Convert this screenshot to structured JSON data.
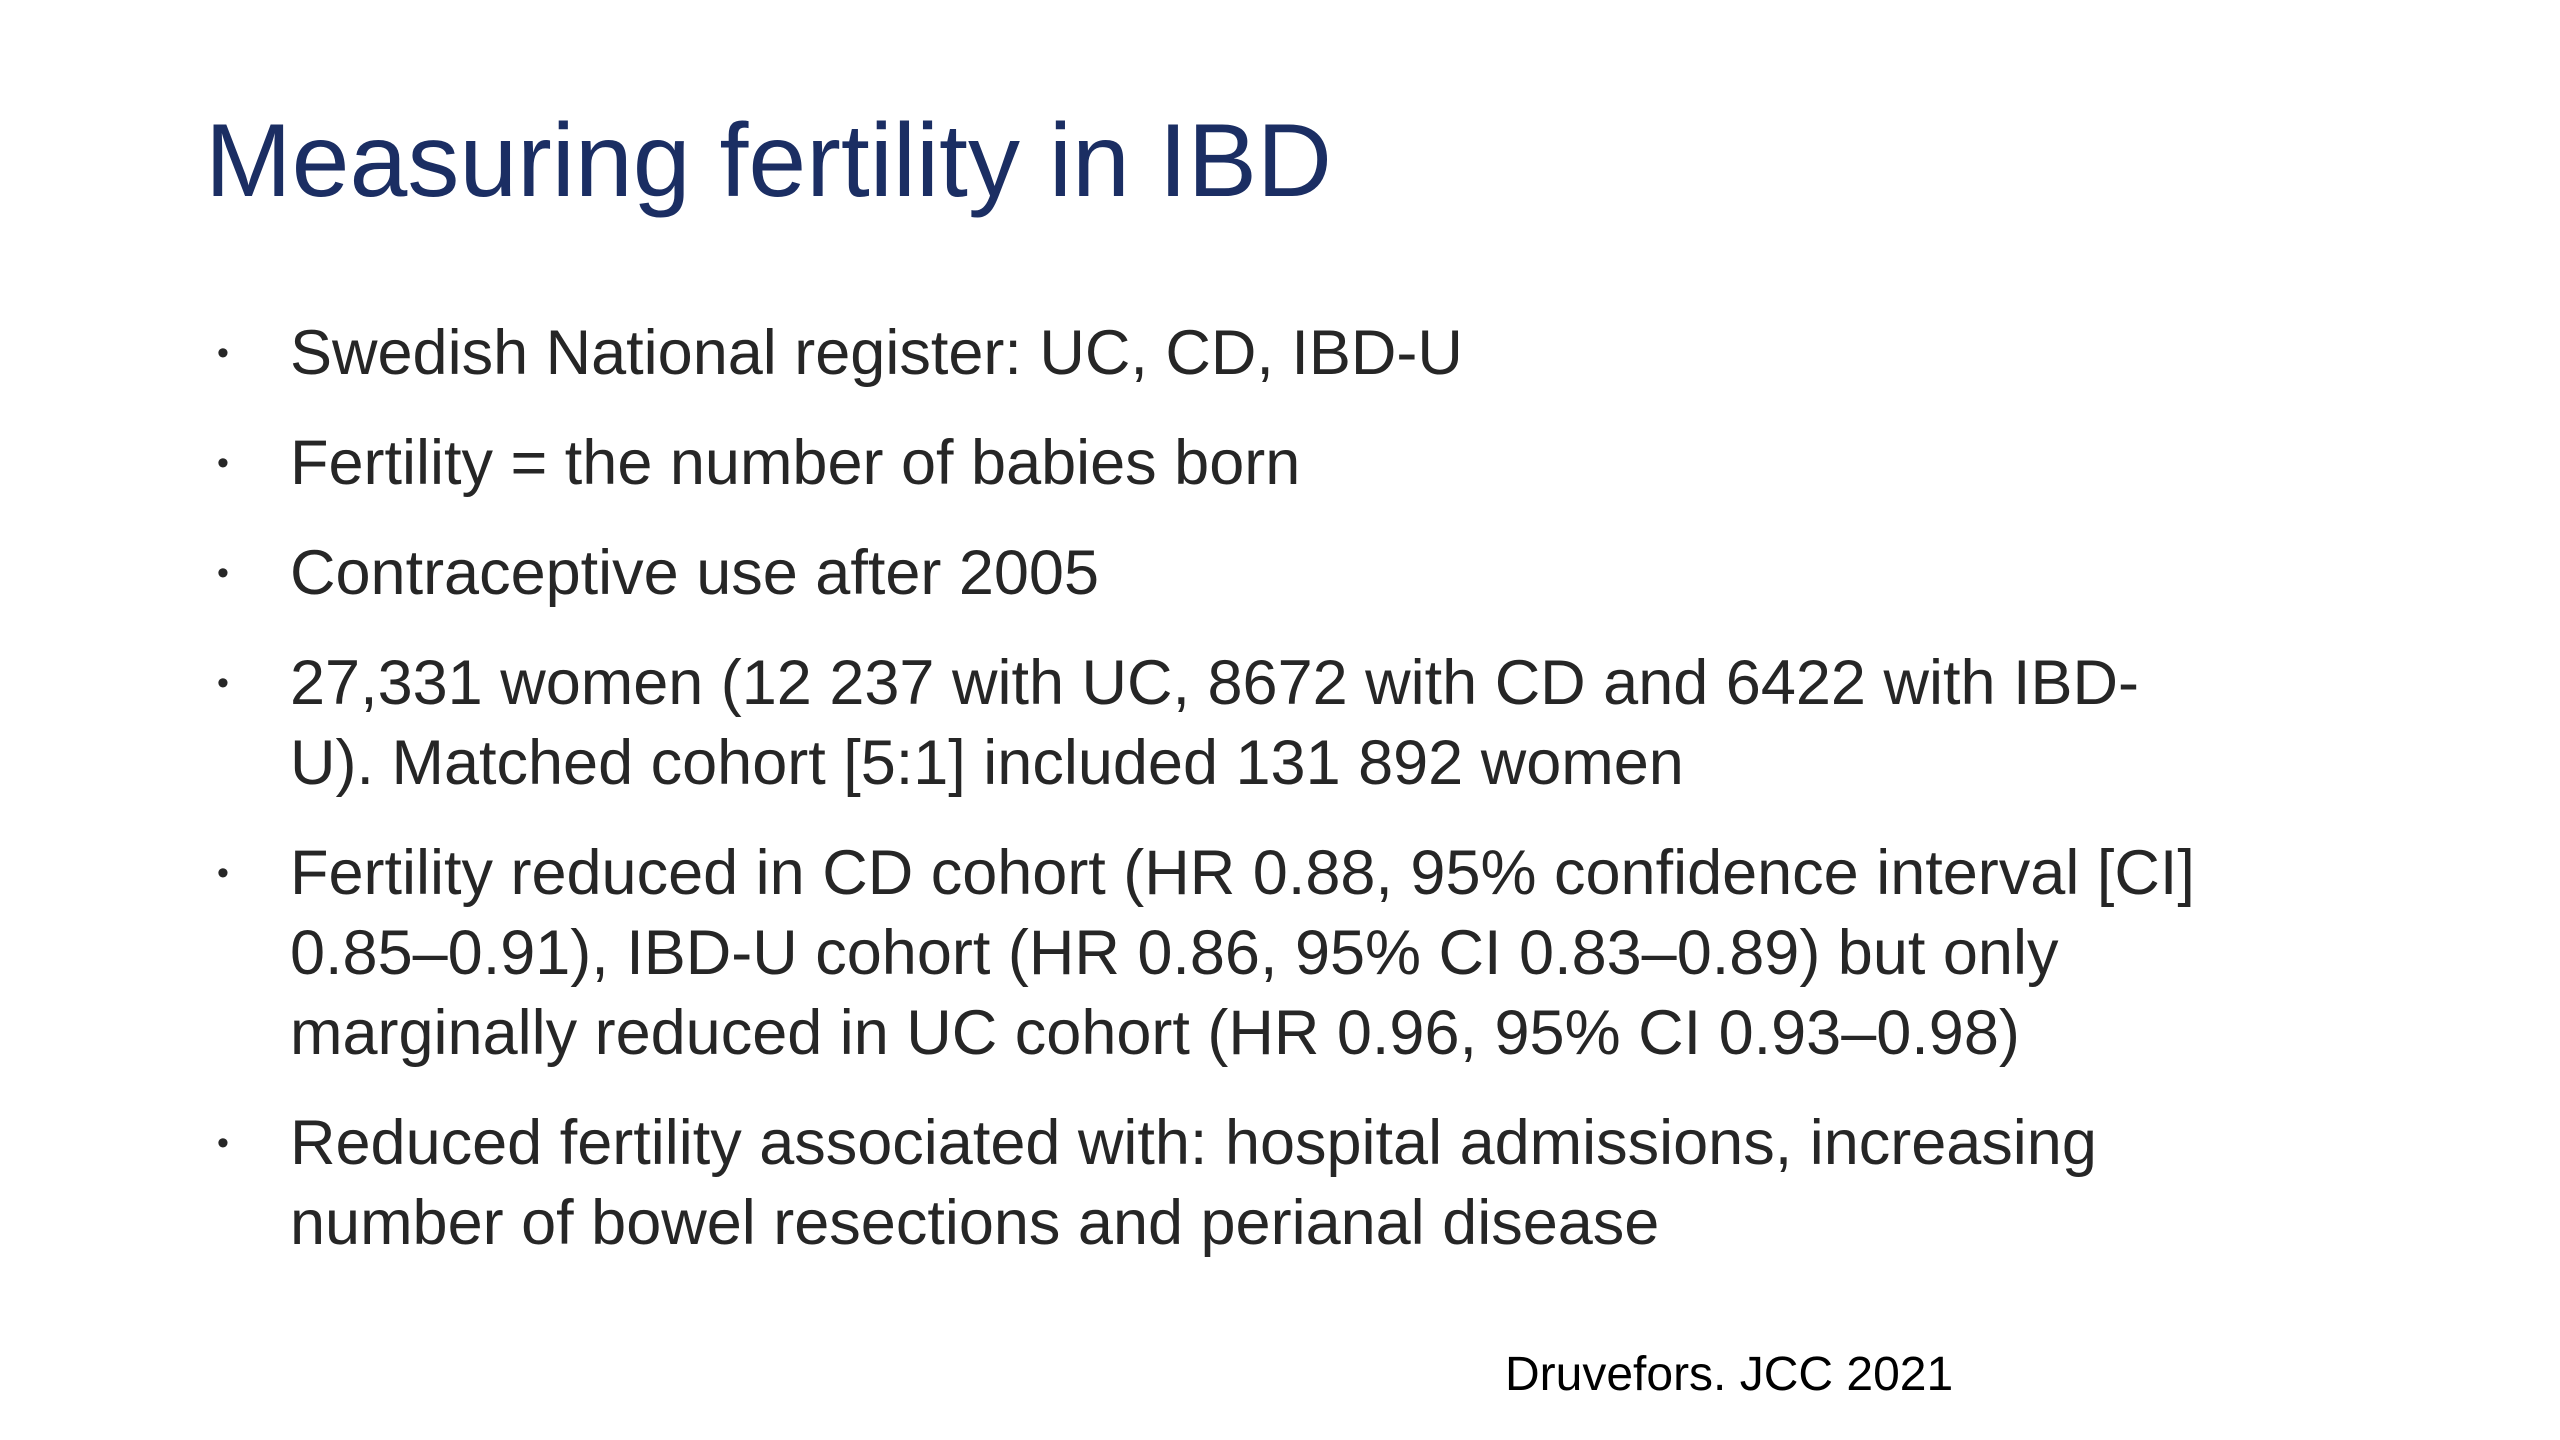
{
  "slide": {
    "background": "#ffffff",
    "title": "Measuring fertility in IBD",
    "title_color": "#1b2e63",
    "body_color": "#262626",
    "bullet_marker": "•",
    "bullets": [
      {
        "lines": [
          "Swedish National register: UC, CD, IBD-U"
        ]
      },
      {
        "lines": [
          "Fertility = the number of babies born"
        ]
      },
      {
        "lines": [
          "Contraceptive use after 2005"
        ]
      },
      {
        "lines": [
          "27,331 women (12 237 with UC, 8672 with CD and 6422 with IBD-",
          "U). Matched cohort [5:1] included 131 892 women"
        ]
      },
      {
        "lines": [
          "Fertility reduced in CD cohort (HR 0.88, 95% confidence interval [CI]",
          "0.85–0.91), IBD-U cohort (HR 0.86, 95% CI 0.83–0.89) but only",
          "marginally reduced in UC cohort (HR 0.96, 95% CI 0.93–0.98)"
        ]
      },
      {
        "lines": [
          "Reduced fertility associated with: hospital admissions, increasing",
          "number of bowel resections and perianal disease"
        ]
      }
    ],
    "citation": "Druvefors. JCC 2021"
  }
}
